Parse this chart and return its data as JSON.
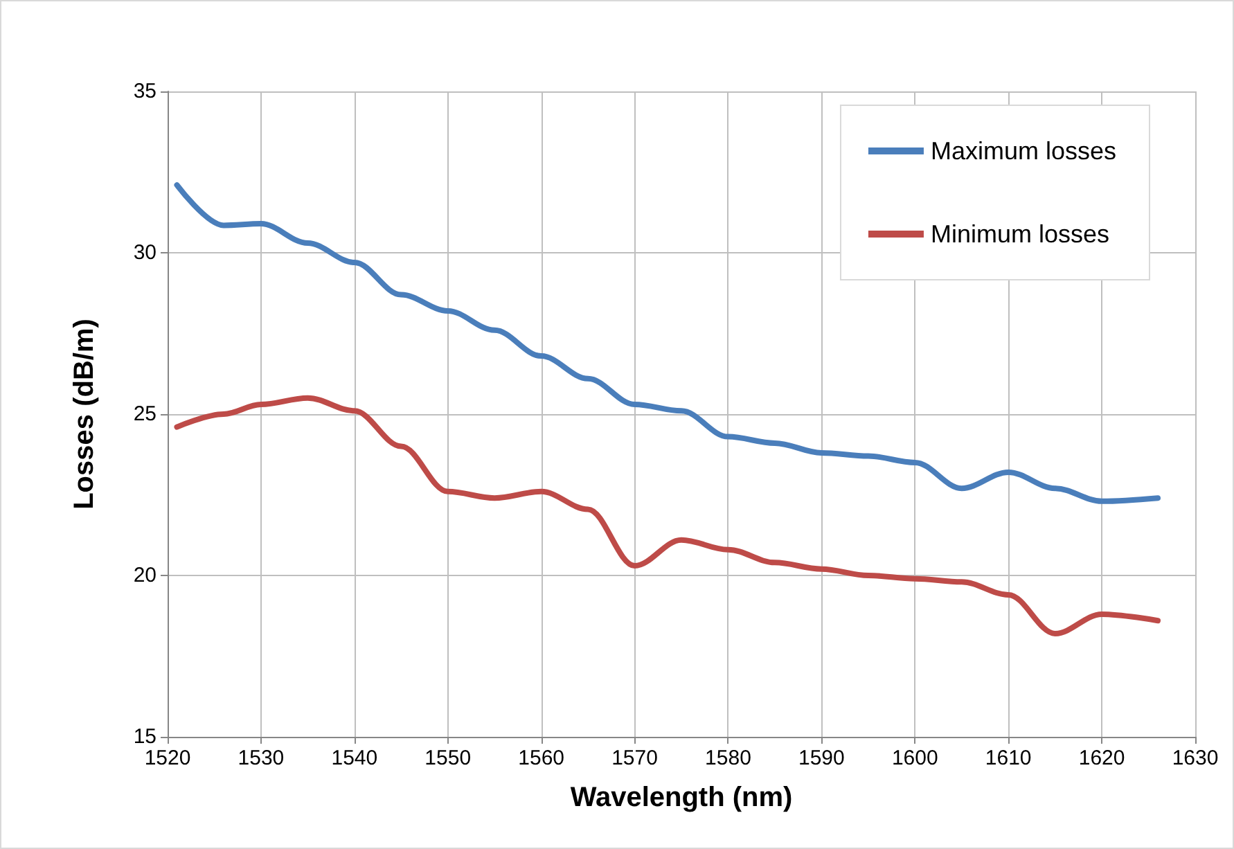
{
  "chart_data": {
    "type": "line",
    "xlabel": "Wavelength (nm)",
    "ylabel": "Losses (dB/m)",
    "xlim": [
      1520,
      1630
    ],
    "xticks": [
      1520,
      1530,
      1540,
      1550,
      1560,
      1570,
      1580,
      1590,
      1600,
      1610,
      1620,
      1630
    ],
    "ylim": [
      15,
      35
    ],
    "yticks": [
      15,
      20,
      25,
      30,
      35
    ],
    "grid": true,
    "legend": "top right",
    "marker": "none",
    "line_style": "solid",
    "x": [
      1521,
      1526,
      1530,
      1535,
      1540,
      1545,
      1550,
      1555,
      1560,
      1565,
      1570,
      1575,
      1580,
      1585,
      1590,
      1595,
      1600,
      1605,
      1610,
      1615,
      1620,
      1626
    ],
    "series": [
      {
        "name": "Maximum losses",
        "color": "#4a7ebb",
        "values": [
          32.1,
          30.85,
          30.9,
          30.3,
          29.7,
          28.7,
          28.2,
          27.6,
          26.8,
          26.1,
          25.3,
          25.1,
          24.3,
          24.1,
          23.8,
          23.7,
          23.5,
          22.7,
          23.2,
          22.7,
          22.3,
          22.4
        ]
      },
      {
        "name": "Minimum losses",
        "color": "#be4b48",
        "values": [
          24.6,
          25.0,
          25.3,
          25.5,
          25.1,
          24.0,
          22.6,
          22.4,
          22.6,
          22.05,
          20.3,
          21.1,
          20.8,
          20.4,
          20.2,
          20.0,
          19.9,
          19.8,
          19.4,
          18.2,
          18.8,
          18.6
        ]
      }
    ]
  }
}
